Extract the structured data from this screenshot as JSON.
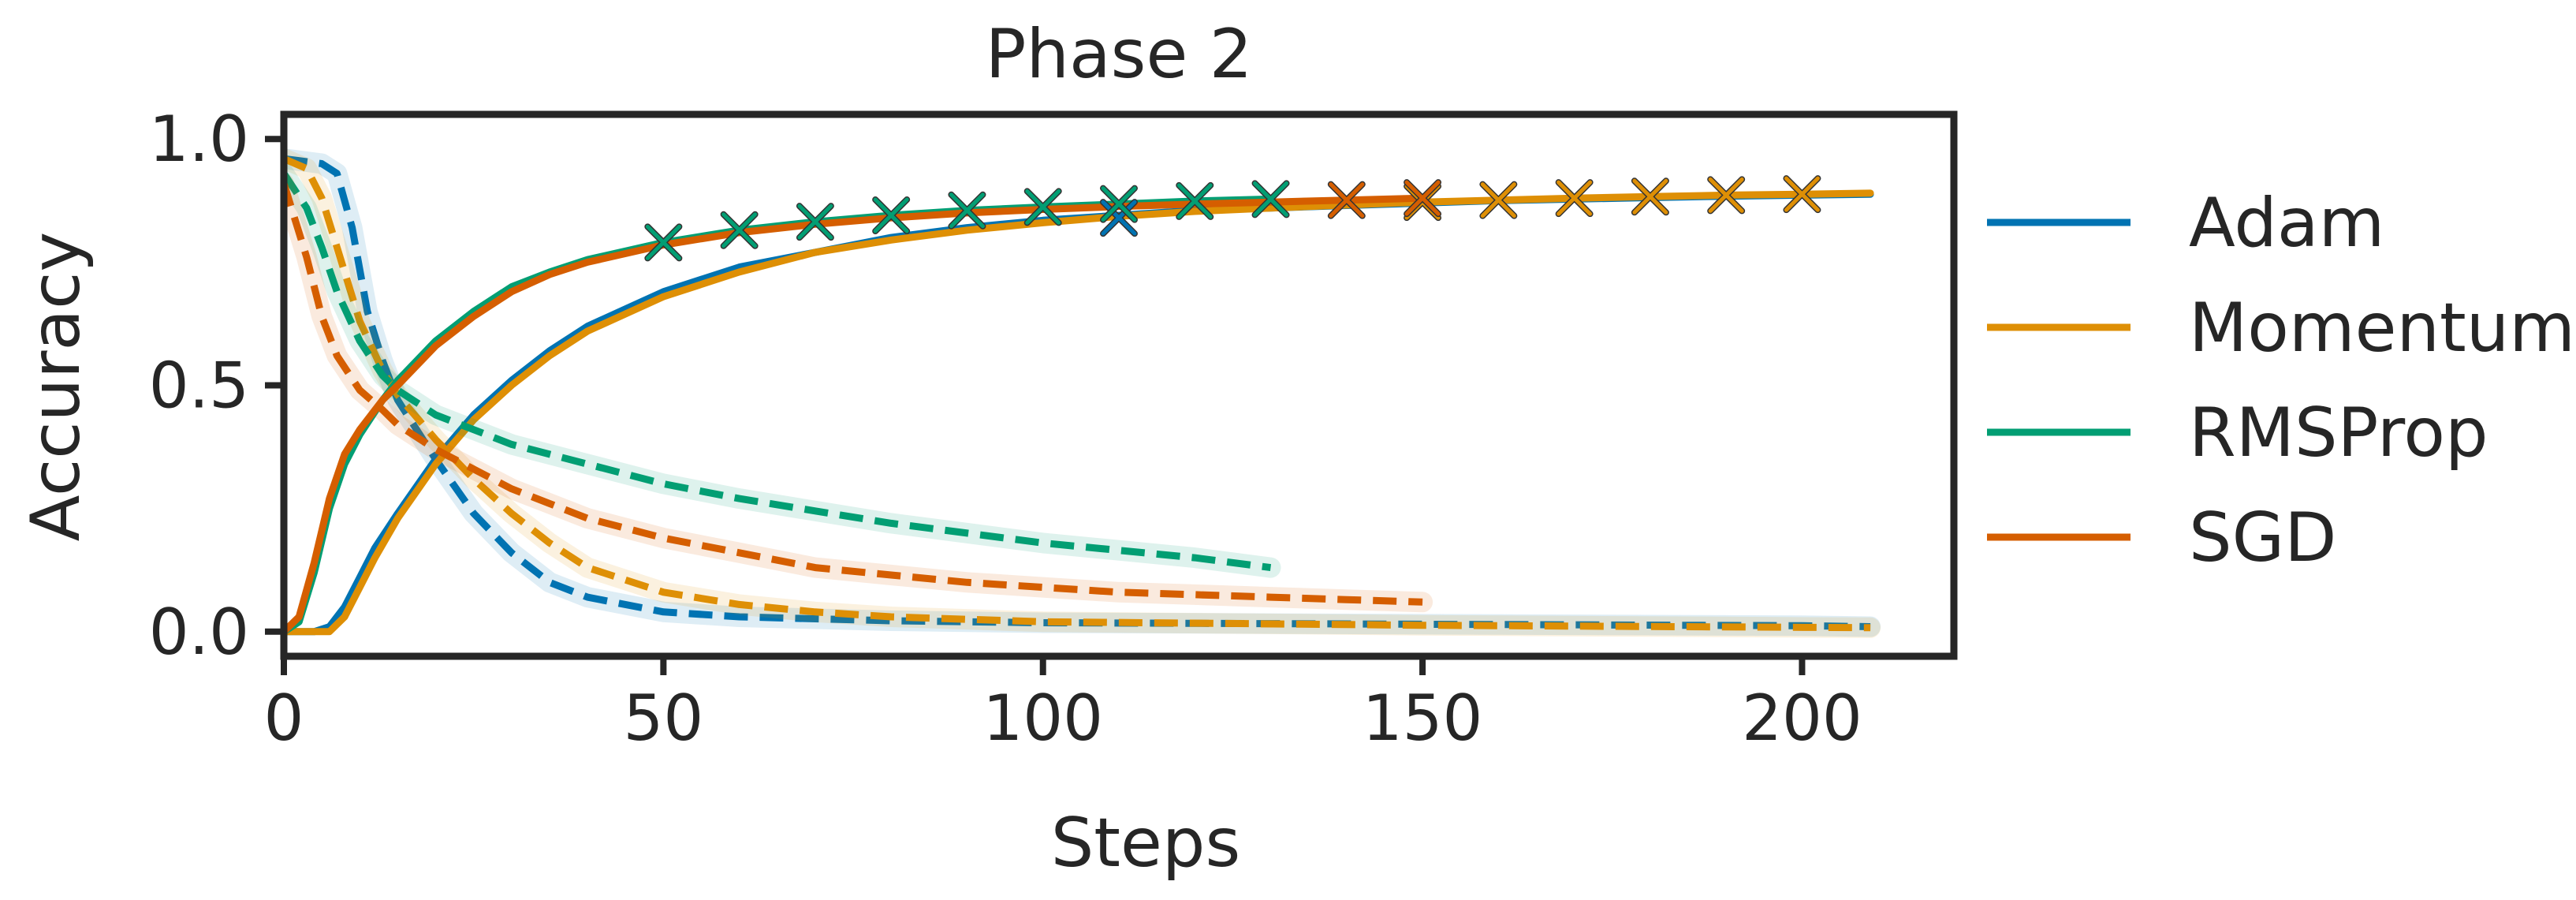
{
  "chart_data": {
    "type": "line",
    "title": "Phase 2",
    "xlabel": "Steps",
    "ylabel": "Accuracy",
    "xlim": [
      0,
      220
    ],
    "ylim": [
      -0.05,
      1.05
    ],
    "xticks": [
      0,
      50,
      100,
      150,
      200
    ],
    "yticks": [
      0.0,
      0.5,
      1.0
    ],
    "ytick_labels": [
      "0.0",
      "0.5",
      "1.0"
    ],
    "grid": false,
    "legend": "right, outside plot",
    "series": [
      {
        "name": "Adam",
        "color": "#0173b2",
        "solid": [
          [
            0,
            0.0
          ],
          [
            4,
            0.0
          ],
          [
            6,
            0.01
          ],
          [
            8,
            0.05
          ],
          [
            10,
            0.11
          ],
          [
            12,
            0.17
          ],
          [
            15,
            0.24
          ],
          [
            20,
            0.35
          ],
          [
            25,
            0.44
          ],
          [
            30,
            0.51
          ],
          [
            35,
            0.57
          ],
          [
            40,
            0.62
          ],
          [
            50,
            0.69
          ],
          [
            60,
            0.74
          ],
          [
            70,
            0.77
          ],
          [
            80,
            0.8
          ],
          [
            90,
            0.82
          ],
          [
            100,
            0.835
          ],
          [
            110,
            0.845
          ],
          [
            120,
            0.855
          ],
          [
            130,
            0.86
          ],
          [
            140,
            0.865
          ],
          [
            150,
            0.87
          ],
          [
            160,
            0.875
          ],
          [
            170,
            0.878
          ],
          [
            180,
            0.881
          ],
          [
            190,
            0.884
          ],
          [
            200,
            0.886
          ],
          [
            209,
            0.888
          ]
        ],
        "dashed": [
          [
            0,
            0.96
          ],
          [
            5,
            0.95
          ],
          [
            7,
            0.93
          ],
          [
            9,
            0.82
          ],
          [
            11,
            0.65
          ],
          [
            13,
            0.55
          ],
          [
            15,
            0.47
          ],
          [
            20,
            0.35
          ],
          [
            25,
            0.24
          ],
          [
            30,
            0.16
          ],
          [
            35,
            0.1
          ],
          [
            40,
            0.07
          ],
          [
            50,
            0.04
          ],
          [
            60,
            0.03
          ],
          [
            80,
            0.022
          ],
          [
            100,
            0.018
          ],
          [
            150,
            0.015
          ],
          [
            200,
            0.012
          ],
          [
            209,
            0.01
          ]
        ],
        "markers": [
          [
            110,
            0.84
          ]
        ]
      },
      {
        "name": "Momentum",
        "color": "#de8f05",
        "solid": [
          [
            0,
            0.0
          ],
          [
            6,
            0.0
          ],
          [
            8,
            0.03
          ],
          [
            10,
            0.09
          ],
          [
            12,
            0.15
          ],
          [
            15,
            0.23
          ],
          [
            20,
            0.34
          ],
          [
            25,
            0.43
          ],
          [
            30,
            0.5
          ],
          [
            35,
            0.56
          ],
          [
            40,
            0.61
          ],
          [
            50,
            0.68
          ],
          [
            60,
            0.73
          ],
          [
            70,
            0.77
          ],
          [
            80,
            0.795
          ],
          [
            90,
            0.815
          ],
          [
            100,
            0.83
          ],
          [
            110,
            0.843
          ],
          [
            120,
            0.853
          ],
          [
            130,
            0.86
          ],
          [
            140,
            0.866
          ],
          [
            150,
            0.872
          ],
          [
            160,
            0.876
          ],
          [
            170,
            0.88
          ],
          [
            180,
            0.883
          ],
          [
            190,
            0.886
          ],
          [
            200,
            0.888
          ],
          [
            209,
            0.89
          ]
        ],
        "dashed": [
          [
            0,
            0.96
          ],
          [
            3,
            0.94
          ],
          [
            5,
            0.88
          ],
          [
            7,
            0.78
          ],
          [
            10,
            0.63
          ],
          [
            13,
            0.53
          ],
          [
            15,
            0.48
          ],
          [
            20,
            0.39
          ],
          [
            25,
            0.31
          ],
          [
            30,
            0.24
          ],
          [
            35,
            0.18
          ],
          [
            40,
            0.13
          ],
          [
            50,
            0.08
          ],
          [
            60,
            0.055
          ],
          [
            70,
            0.04
          ],
          [
            80,
            0.03
          ],
          [
            100,
            0.02
          ],
          [
            150,
            0.013
          ],
          [
            209,
            0.008
          ]
        ],
        "markers": [
          [
            150,
            0.872
          ],
          [
            160,
            0.876
          ],
          [
            170,
            0.88
          ],
          [
            180,
            0.883
          ],
          [
            190,
            0.886
          ],
          [
            200,
            0.888
          ]
        ]
      },
      {
        "name": "RMSProp",
        "color": "#029e73",
        "solid": [
          [
            0,
            0.0
          ],
          [
            2,
            0.02
          ],
          [
            4,
            0.12
          ],
          [
            6,
            0.25
          ],
          [
            8,
            0.34
          ],
          [
            10,
            0.4
          ],
          [
            13,
            0.47
          ],
          [
            15,
            0.51
          ],
          [
            20,
            0.59
          ],
          [
            25,
            0.65
          ],
          [
            30,
            0.7
          ],
          [
            35,
            0.73
          ],
          [
            40,
            0.755
          ],
          [
            50,
            0.79
          ],
          [
            60,
            0.815
          ],
          [
            70,
            0.832
          ],
          [
            80,
            0.845
          ],
          [
            90,
            0.855
          ],
          [
            100,
            0.862
          ],
          [
            110,
            0.868
          ],
          [
            120,
            0.874
          ],
          [
            130,
            0.878
          ]
        ],
        "dashed": [
          [
            0,
            0.93
          ],
          [
            3,
            0.86
          ],
          [
            5,
            0.78
          ],
          [
            7,
            0.69
          ],
          [
            10,
            0.59
          ],
          [
            13,
            0.52
          ],
          [
            15,
            0.49
          ],
          [
            20,
            0.44
          ],
          [
            25,
            0.41
          ],
          [
            30,
            0.38
          ],
          [
            35,
            0.36
          ],
          [
            40,
            0.34
          ],
          [
            50,
            0.3
          ],
          [
            60,
            0.27
          ],
          [
            70,
            0.245
          ],
          [
            80,
            0.22
          ],
          [
            90,
            0.2
          ],
          [
            100,
            0.18
          ],
          [
            110,
            0.165
          ],
          [
            120,
            0.15
          ],
          [
            130,
            0.13
          ]
        ],
        "markers": [
          [
            50,
            0.79
          ],
          [
            60,
            0.815
          ],
          [
            70,
            0.832
          ],
          [
            80,
            0.845
          ],
          [
            90,
            0.855
          ],
          [
            100,
            0.862
          ],
          [
            110,
            0.868
          ],
          [
            120,
            0.874
          ],
          [
            130,
            0.878
          ]
        ]
      },
      {
        "name": "SGD",
        "color": "#d55e00",
        "solid": [
          [
            0,
            0.0
          ],
          [
            2,
            0.03
          ],
          [
            4,
            0.14
          ],
          [
            6,
            0.27
          ],
          [
            8,
            0.36
          ],
          [
            10,
            0.41
          ],
          [
            13,
            0.47
          ],
          [
            15,
            0.5
          ],
          [
            20,
            0.58
          ],
          [
            25,
            0.64
          ],
          [
            30,
            0.69
          ],
          [
            35,
            0.725
          ],
          [
            40,
            0.75
          ],
          [
            50,
            0.785
          ],
          [
            60,
            0.81
          ],
          [
            70,
            0.827
          ],
          [
            80,
            0.84
          ],
          [
            90,
            0.85
          ],
          [
            100,
            0.857
          ],
          [
            110,
            0.863
          ],
          [
            120,
            0.868
          ],
          [
            130,
            0.872
          ],
          [
            140,
            0.876
          ],
          [
            150,
            0.88
          ]
        ],
        "dashed": [
          [
            0,
            0.91
          ],
          [
            3,
            0.76
          ],
          [
            5,
            0.64
          ],
          [
            7,
            0.56
          ],
          [
            10,
            0.49
          ],
          [
            13,
            0.45
          ],
          [
            15,
            0.42
          ],
          [
            20,
            0.37
          ],
          [
            25,
            0.33
          ],
          [
            30,
            0.29
          ],
          [
            35,
            0.26
          ],
          [
            40,
            0.23
          ],
          [
            50,
            0.19
          ],
          [
            60,
            0.16
          ],
          [
            70,
            0.13
          ],
          [
            80,
            0.115
          ],
          [
            90,
            0.1
          ],
          [
            100,
            0.09
          ],
          [
            110,
            0.08
          ],
          [
            120,
            0.075
          ],
          [
            130,
            0.07
          ],
          [
            140,
            0.065
          ],
          [
            150,
            0.06
          ]
        ],
        "markers": [
          [
            140,
            0.876
          ],
          [
            150,
            0.88
          ]
        ]
      }
    ]
  }
}
